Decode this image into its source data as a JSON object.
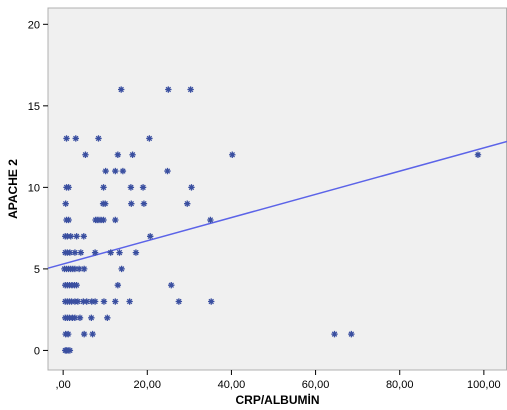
{
  "chart_data": {
    "type": "scatter",
    "title": "",
    "xlabel": "CRP/ALBUMİN",
    "ylabel": "APACHE 2",
    "xlim": [
      -3.6,
      105.5
    ],
    "ylim": [
      -1.2,
      21
    ],
    "xticks": [
      0,
      20,
      40,
      60,
      80,
      100
    ],
    "xtick_labels": [
      ",00",
      "20,00",
      "40,00",
      "60,00",
      "80,00",
      "100,00"
    ],
    "yticks": [
      0,
      5,
      10,
      15,
      20
    ],
    "ytick_labels": [
      "0",
      "5",
      "10",
      "15",
      "20"
    ],
    "grid": false,
    "colors": {
      "plot_background": "#f0f0f0",
      "marker": "#3a4fa0",
      "fit_line": "#5b63e8"
    },
    "fit_line": {
      "intercept": 5.3,
      "slope": 0.0712
    },
    "series": [
      {
        "marker": "asterisk",
        "points": [
          [
            0.5,
            0
          ],
          [
            0.8,
            0
          ],
          [
            1.2,
            0
          ],
          [
            1.6,
            0
          ],
          [
            0.6,
            1
          ],
          [
            1.2,
            1
          ],
          [
            5.0,
            1
          ],
          [
            7.0,
            1
          ],
          [
            64.5,
            1
          ],
          [
            68.5,
            1
          ],
          [
            0.5,
            2
          ],
          [
            1.0,
            2
          ],
          [
            1.5,
            2
          ],
          [
            2.2,
            2
          ],
          [
            2.8,
            2
          ],
          [
            4.0,
            2
          ],
          [
            6.7,
            2
          ],
          [
            10.5,
            2
          ],
          [
            0.5,
            3
          ],
          [
            1.0,
            3
          ],
          [
            1.5,
            3
          ],
          [
            2.0,
            3
          ],
          [
            2.8,
            3
          ],
          [
            3.5,
            3
          ],
          [
            4.8,
            3
          ],
          [
            5.6,
            3
          ],
          [
            6.8,
            3
          ],
          [
            7.6,
            3
          ],
          [
            9.7,
            3
          ],
          [
            12.4,
            3
          ],
          [
            15.8,
            3
          ],
          [
            27.5,
            3
          ],
          [
            35.2,
            3
          ],
          [
            0.5,
            4
          ],
          [
            1.0,
            4
          ],
          [
            1.5,
            4
          ],
          [
            2.1,
            4
          ],
          [
            2.7,
            4
          ],
          [
            3.2,
            4
          ],
          [
            13.0,
            4
          ],
          [
            25.7,
            4
          ],
          [
            0.3,
            5
          ],
          [
            0.8,
            5
          ],
          [
            1.3,
            5
          ],
          [
            1.8,
            5
          ],
          [
            2.3,
            5
          ],
          [
            2.8,
            5
          ],
          [
            3.8,
            5
          ],
          [
            5.0,
            5
          ],
          [
            13.9,
            5
          ],
          [
            0.5,
            6
          ],
          [
            1.0,
            6
          ],
          [
            1.6,
            6
          ],
          [
            2.8,
            6
          ],
          [
            4.2,
            6
          ],
          [
            7.6,
            6
          ],
          [
            11.3,
            6
          ],
          [
            13.4,
            6
          ],
          [
            17.3,
            6
          ],
          [
            0.5,
            7
          ],
          [
            1.0,
            7
          ],
          [
            1.8,
            7
          ],
          [
            3.2,
            7
          ],
          [
            4.9,
            7
          ],
          [
            20.7,
            7
          ],
          [
            0.8,
            8
          ],
          [
            1.3,
            8
          ],
          [
            7.7,
            8
          ],
          [
            8.1,
            8
          ],
          [
            8.5,
            8
          ],
          [
            9.0,
            8
          ],
          [
            9.6,
            8
          ],
          [
            12.4,
            8
          ],
          [
            35.0,
            8
          ],
          [
            0.6,
            9
          ],
          [
            9.5,
            9
          ],
          [
            10.0,
            9
          ],
          [
            16.2,
            9
          ],
          [
            19.2,
            9
          ],
          [
            29.5,
            9
          ],
          [
            0.8,
            10
          ],
          [
            1.3,
            10
          ],
          [
            9.6,
            10
          ],
          [
            16.1,
            10
          ],
          [
            19.0,
            10
          ],
          [
            30.5,
            10
          ],
          [
            10.1,
            11
          ],
          [
            12.4,
            11
          ],
          [
            14.2,
            11
          ],
          [
            24.8,
            11
          ],
          [
            5.3,
            12
          ],
          [
            13.0,
            12
          ],
          [
            16.5,
            12
          ],
          [
            40.2,
            12
          ],
          [
            98.6,
            12
          ],
          [
            0.8,
            13
          ],
          [
            3.0,
            13
          ],
          [
            8.4,
            13
          ],
          [
            20.5,
            13
          ],
          [
            13.8,
            16
          ],
          [
            25.0,
            16
          ],
          [
            30.3,
            16
          ]
        ]
      }
    ]
  }
}
